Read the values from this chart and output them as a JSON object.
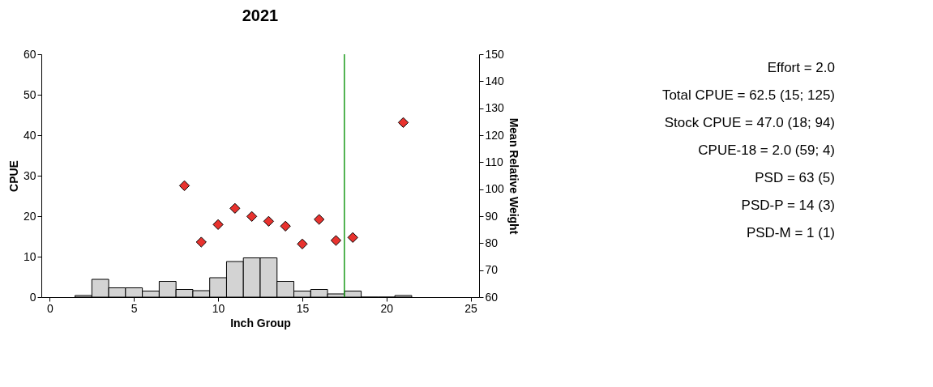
{
  "chart_data": {
    "type": "histogram",
    "title": "2021",
    "xlabel": "Inch Group",
    "ylabel": "CPUE",
    "y2label": "Mean Relative Weight",
    "bins": [
      1.5,
      2.5,
      3.5,
      4.5,
      5.5,
      6.5,
      7.5,
      8.5,
      9.5,
      10.5,
      11.5,
      12.5,
      13.5,
      14.5,
      15.5,
      16.5,
      17.5,
      18.5,
      19.5,
      20.5,
      21.5
    ],
    "values": [
      0.4,
      4.4,
      2.3,
      2.3,
      1.5,
      3.9,
      1.9,
      1.6,
      4.8,
      8.8,
      9.7,
      9.7,
      3.9,
      1.5,
      1.9,
      0.8,
      1.5,
      0,
      0,
      0.4
    ],
    "color": "#d3d3d3",
    "series": [
      {
        "type": "scatter",
        "axis": "y2",
        "color": "#e8322e",
        "marker": "diamond",
        "x": [
          8,
          9,
          10,
          11,
          12,
          13,
          14,
          15,
          16,
          17,
          18,
          21
        ],
        "values": [
          101.3,
          80.4,
          86.9,
          92.9,
          89.9,
          88.1,
          86.3,
          79.7,
          88.8,
          81.0,
          82.1,
          124.7
        ]
      }
    ],
    "xlim": [
      -0.5,
      25.5
    ],
    "xticks": [
      0,
      5,
      10,
      15,
      20,
      25
    ],
    "ylim": [
      0,
      60
    ],
    "yticks": [
      0,
      10,
      20,
      30,
      40,
      50,
      60
    ],
    "y2lim": [
      60,
      150
    ],
    "y2ticks": [
      60,
      70,
      80,
      90,
      100,
      110,
      120,
      130,
      140,
      150
    ],
    "ref_lines": [
      {
        "axis": "x",
        "value": 17.5,
        "color": "#1a9a1a"
      }
    ],
    "grid": false,
    "annotations": [
      "Effort = 2.0",
      "Total CPUE = 62.5 (15; 125)",
      "Stock CPUE = 47.0 (18; 94)",
      "CPUE-18 = 2.0 (59; 4)",
      "PSD = 63 (5)",
      "PSD-P = 14 (3)",
      "PSD-M = 1 (1)"
    ]
  }
}
